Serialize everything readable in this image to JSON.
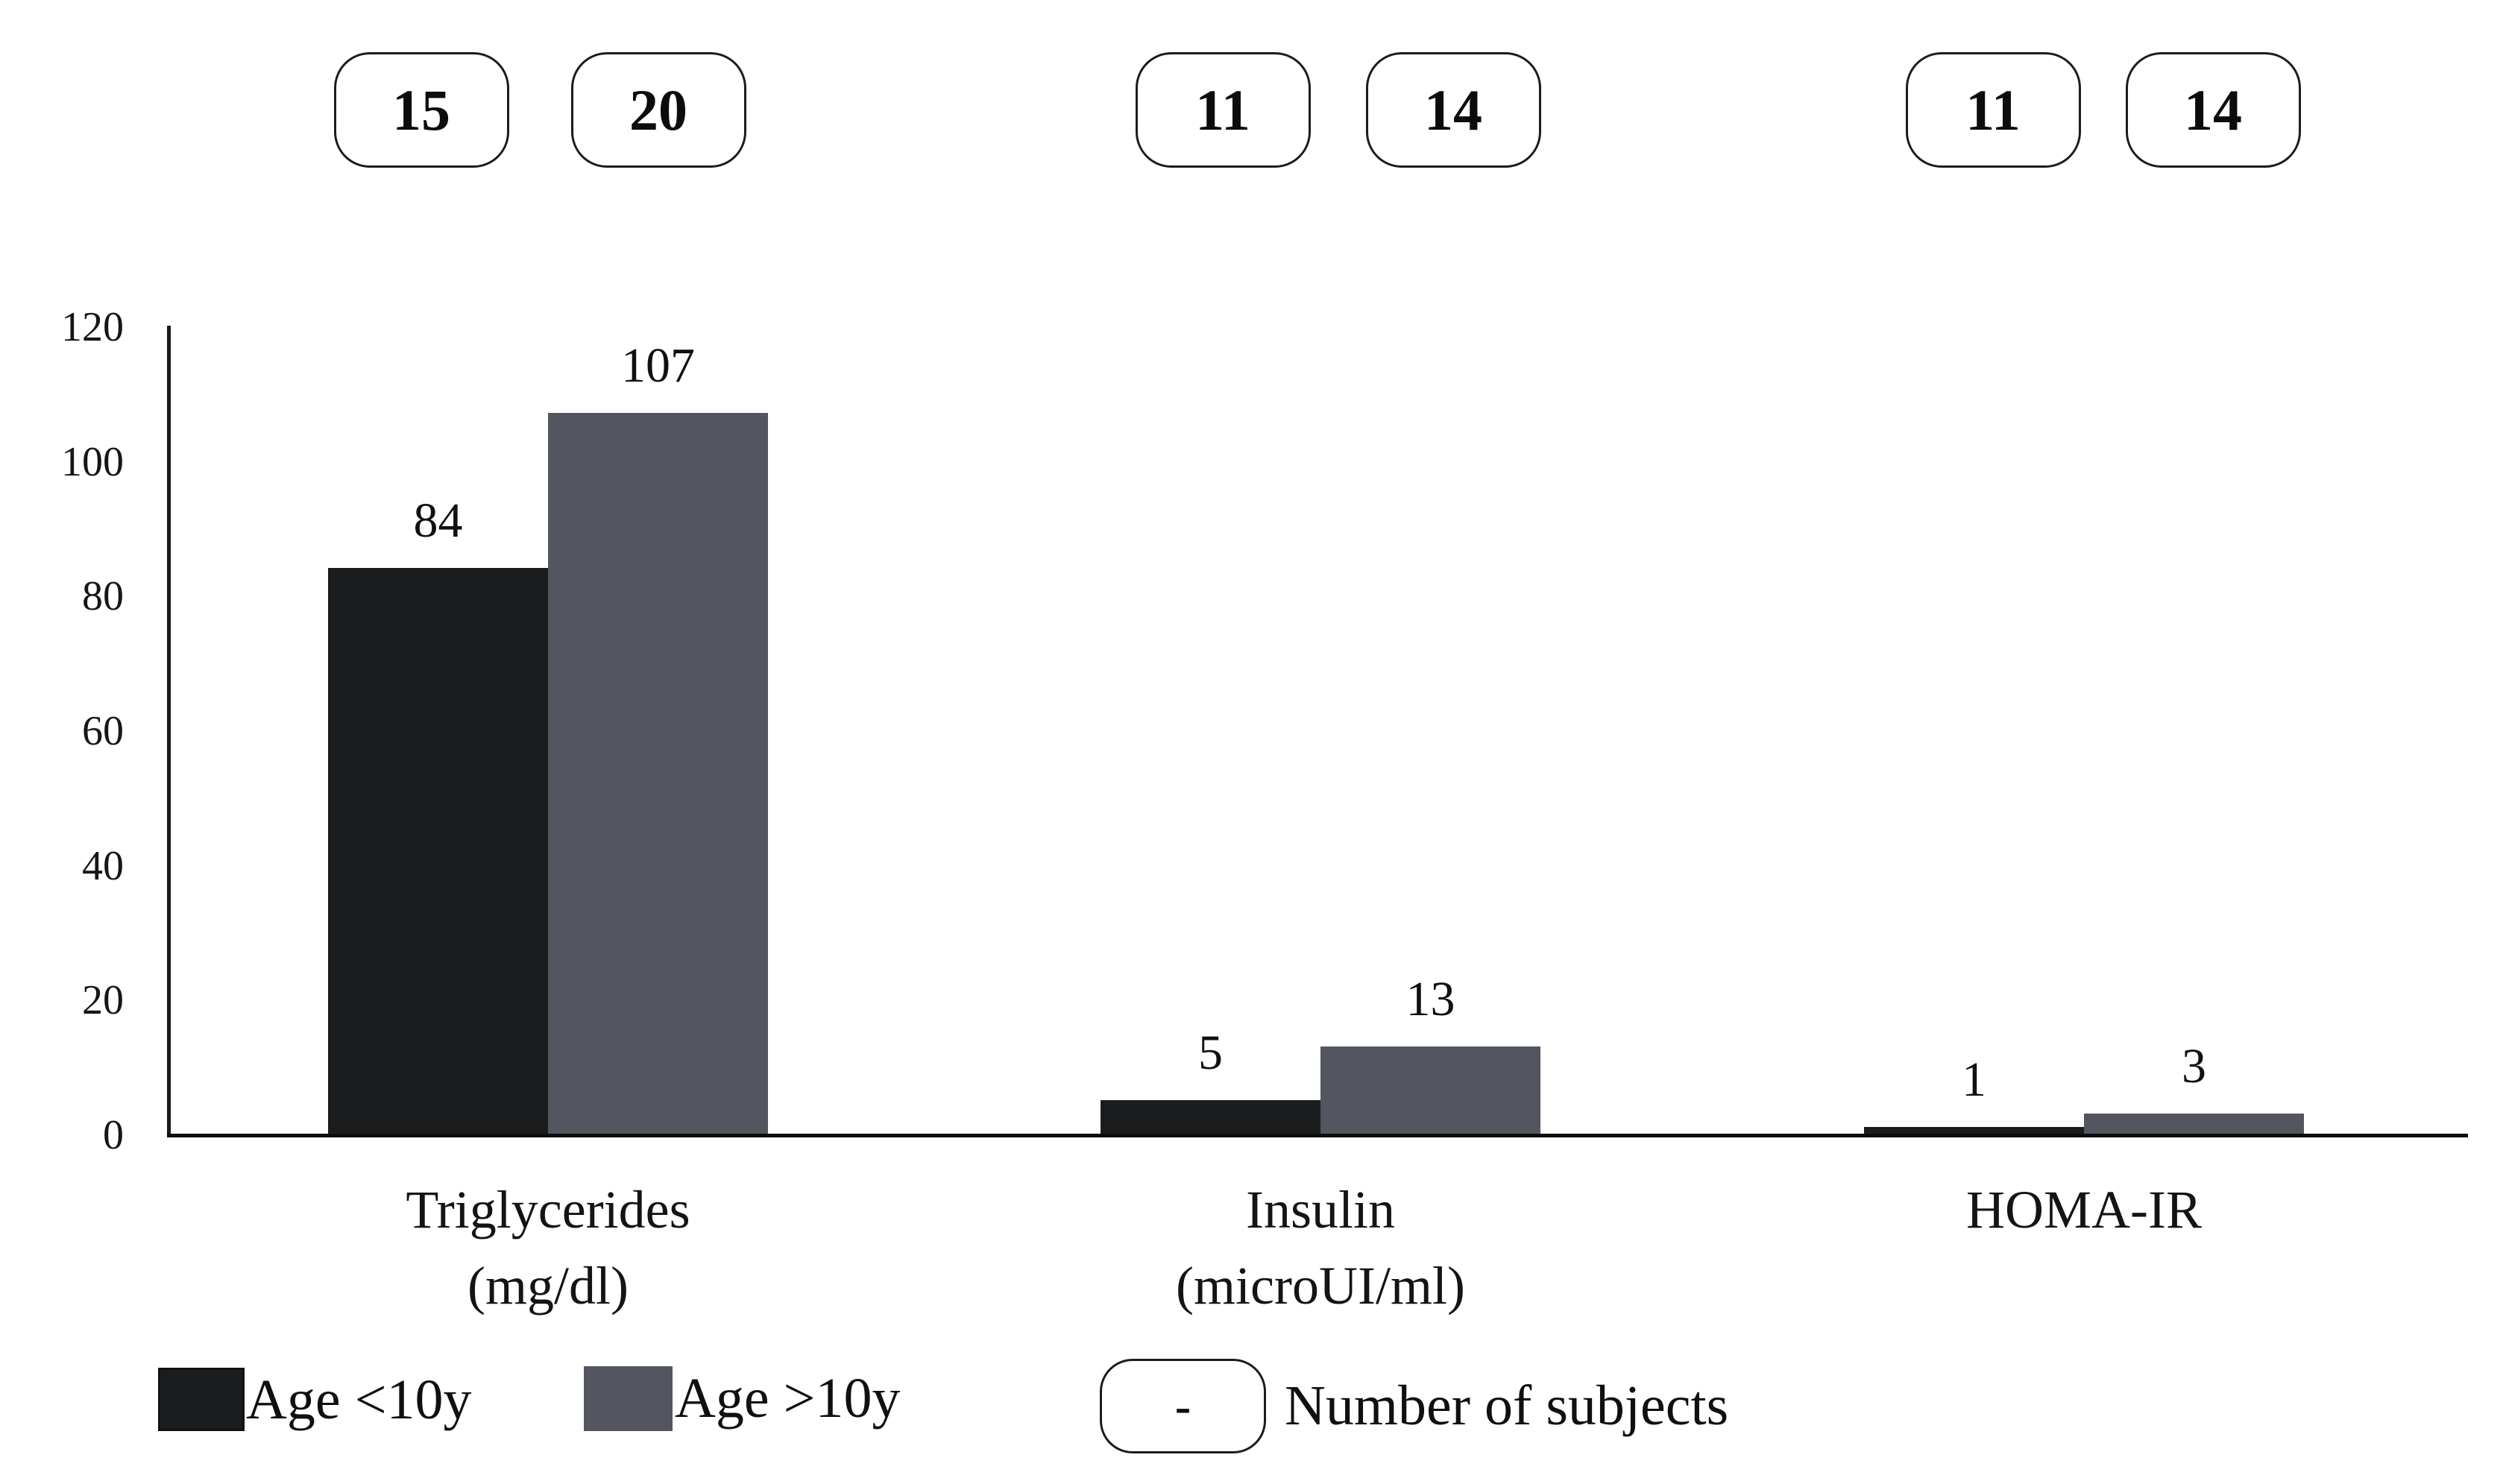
{
  "chart_data": {
    "type": "bar",
    "title": "",
    "xlabel": "",
    "ylabel": "",
    "categories": [
      "Triglycerides (mg/dl)",
      "Insulin (microUI/ml)",
      "HOMA-IR"
    ],
    "category_lines": [
      [
        "Triglycerides",
        "(mg/dl)"
      ],
      [
        "Insulin",
        "(microUI/ml)"
      ],
      [
        "HOMA-IR"
      ]
    ],
    "series": [
      {
        "name": "Age <10y",
        "color": "#1a1c1e",
        "values": [
          84,
          5,
          1
        ],
        "subject_counts": [
          15,
          11,
          11
        ]
      },
      {
        "name": "Age >10y",
        "color": "#53565e",
        "values": [
          107,
          13,
          3
        ],
        "subject_counts": [
          20,
          14,
          14
        ]
      }
    ],
    "bar_value_labels": [
      [
        84,
        5,
        1
      ],
      [
        107,
        13,
        3
      ]
    ],
    "y_ticks": [
      0,
      20,
      40,
      60,
      80,
      100,
      120
    ],
    "ylim": [
      0,
      120
    ],
    "grid": false,
    "legend_position": "bottom"
  },
  "legend": {
    "note_symbol": "-",
    "note_label": "Number of subjects"
  },
  "colors": {
    "bar_dark": "#1a1c1e",
    "bar_gray": "#53565e",
    "axis": "#0d0d0d",
    "text": "#111111",
    "background": "#ffffff"
  }
}
